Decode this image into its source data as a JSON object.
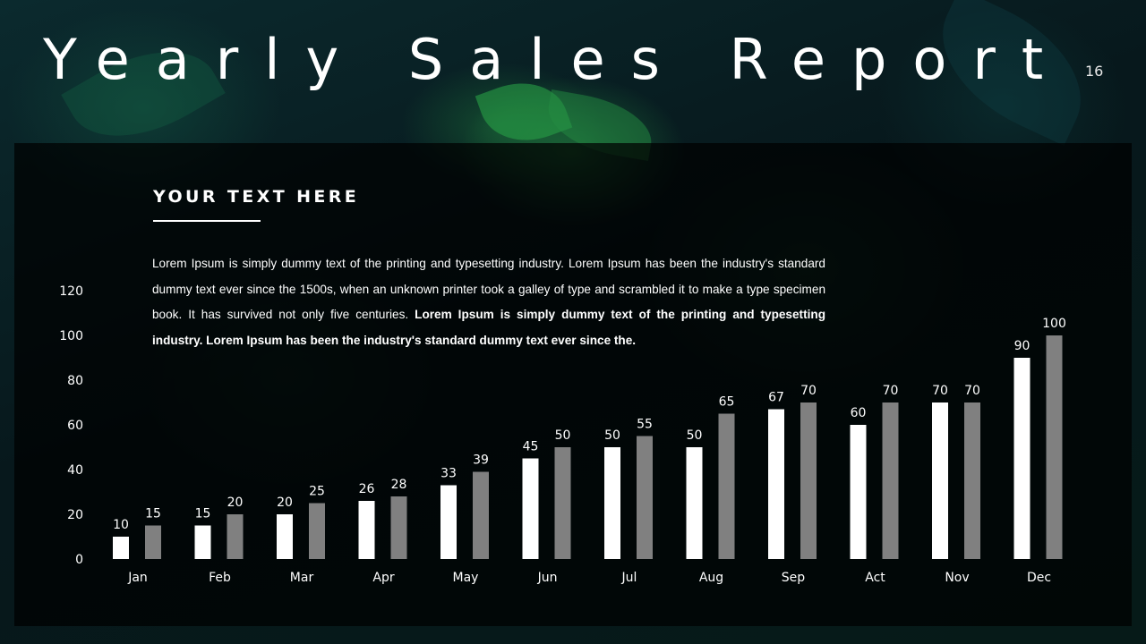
{
  "slide": {
    "title": "Yearly Sales Report",
    "page_number": "16",
    "heading": "YOUR TEXT HERE",
    "paragraph_regular": "Lorem Ipsum is simply dummy text of the printing and typesetting industry. Lorem Ipsum has been the industry's standard dummy text ever since the 1500s, when an unknown printer took a galley of type and scrambled it to make a type specimen book. It has survived not only five centuries. ",
    "paragraph_bold": "Lorem Ipsum is simply dummy text of the printing and typesetting industry. Lorem Ipsum has been the industry's standard dummy text ever since the."
  },
  "colors": {
    "series_1": "#ffffff",
    "series_2": "#808080",
    "text": "#ffffff",
    "panel": "#000000"
  },
  "chart_data": {
    "type": "bar",
    "categories": [
      "Jan",
      "Feb",
      "Mar",
      "Apr",
      "May",
      "Jun",
      "Jul",
      "Aug",
      "Sep",
      "Act",
      "Nov",
      "Dec"
    ],
    "series": [
      {
        "values": [
          10,
          15,
          20,
          26,
          33,
          45,
          50,
          50,
          67,
          60,
          70,
          90
        ],
        "color": "#ffffff"
      },
      {
        "values": [
          15,
          20,
          25,
          28,
          39,
          50,
          55,
          65,
          70,
          70,
          70,
          100
        ],
        "color": "#808080"
      }
    ],
    "y_ticks": [
      0,
      20,
      40,
      60,
      80,
      100,
      120
    ],
    "ylim": [
      0,
      120
    ],
    "data_labels": true,
    "grid": false,
    "legend": "none"
  }
}
